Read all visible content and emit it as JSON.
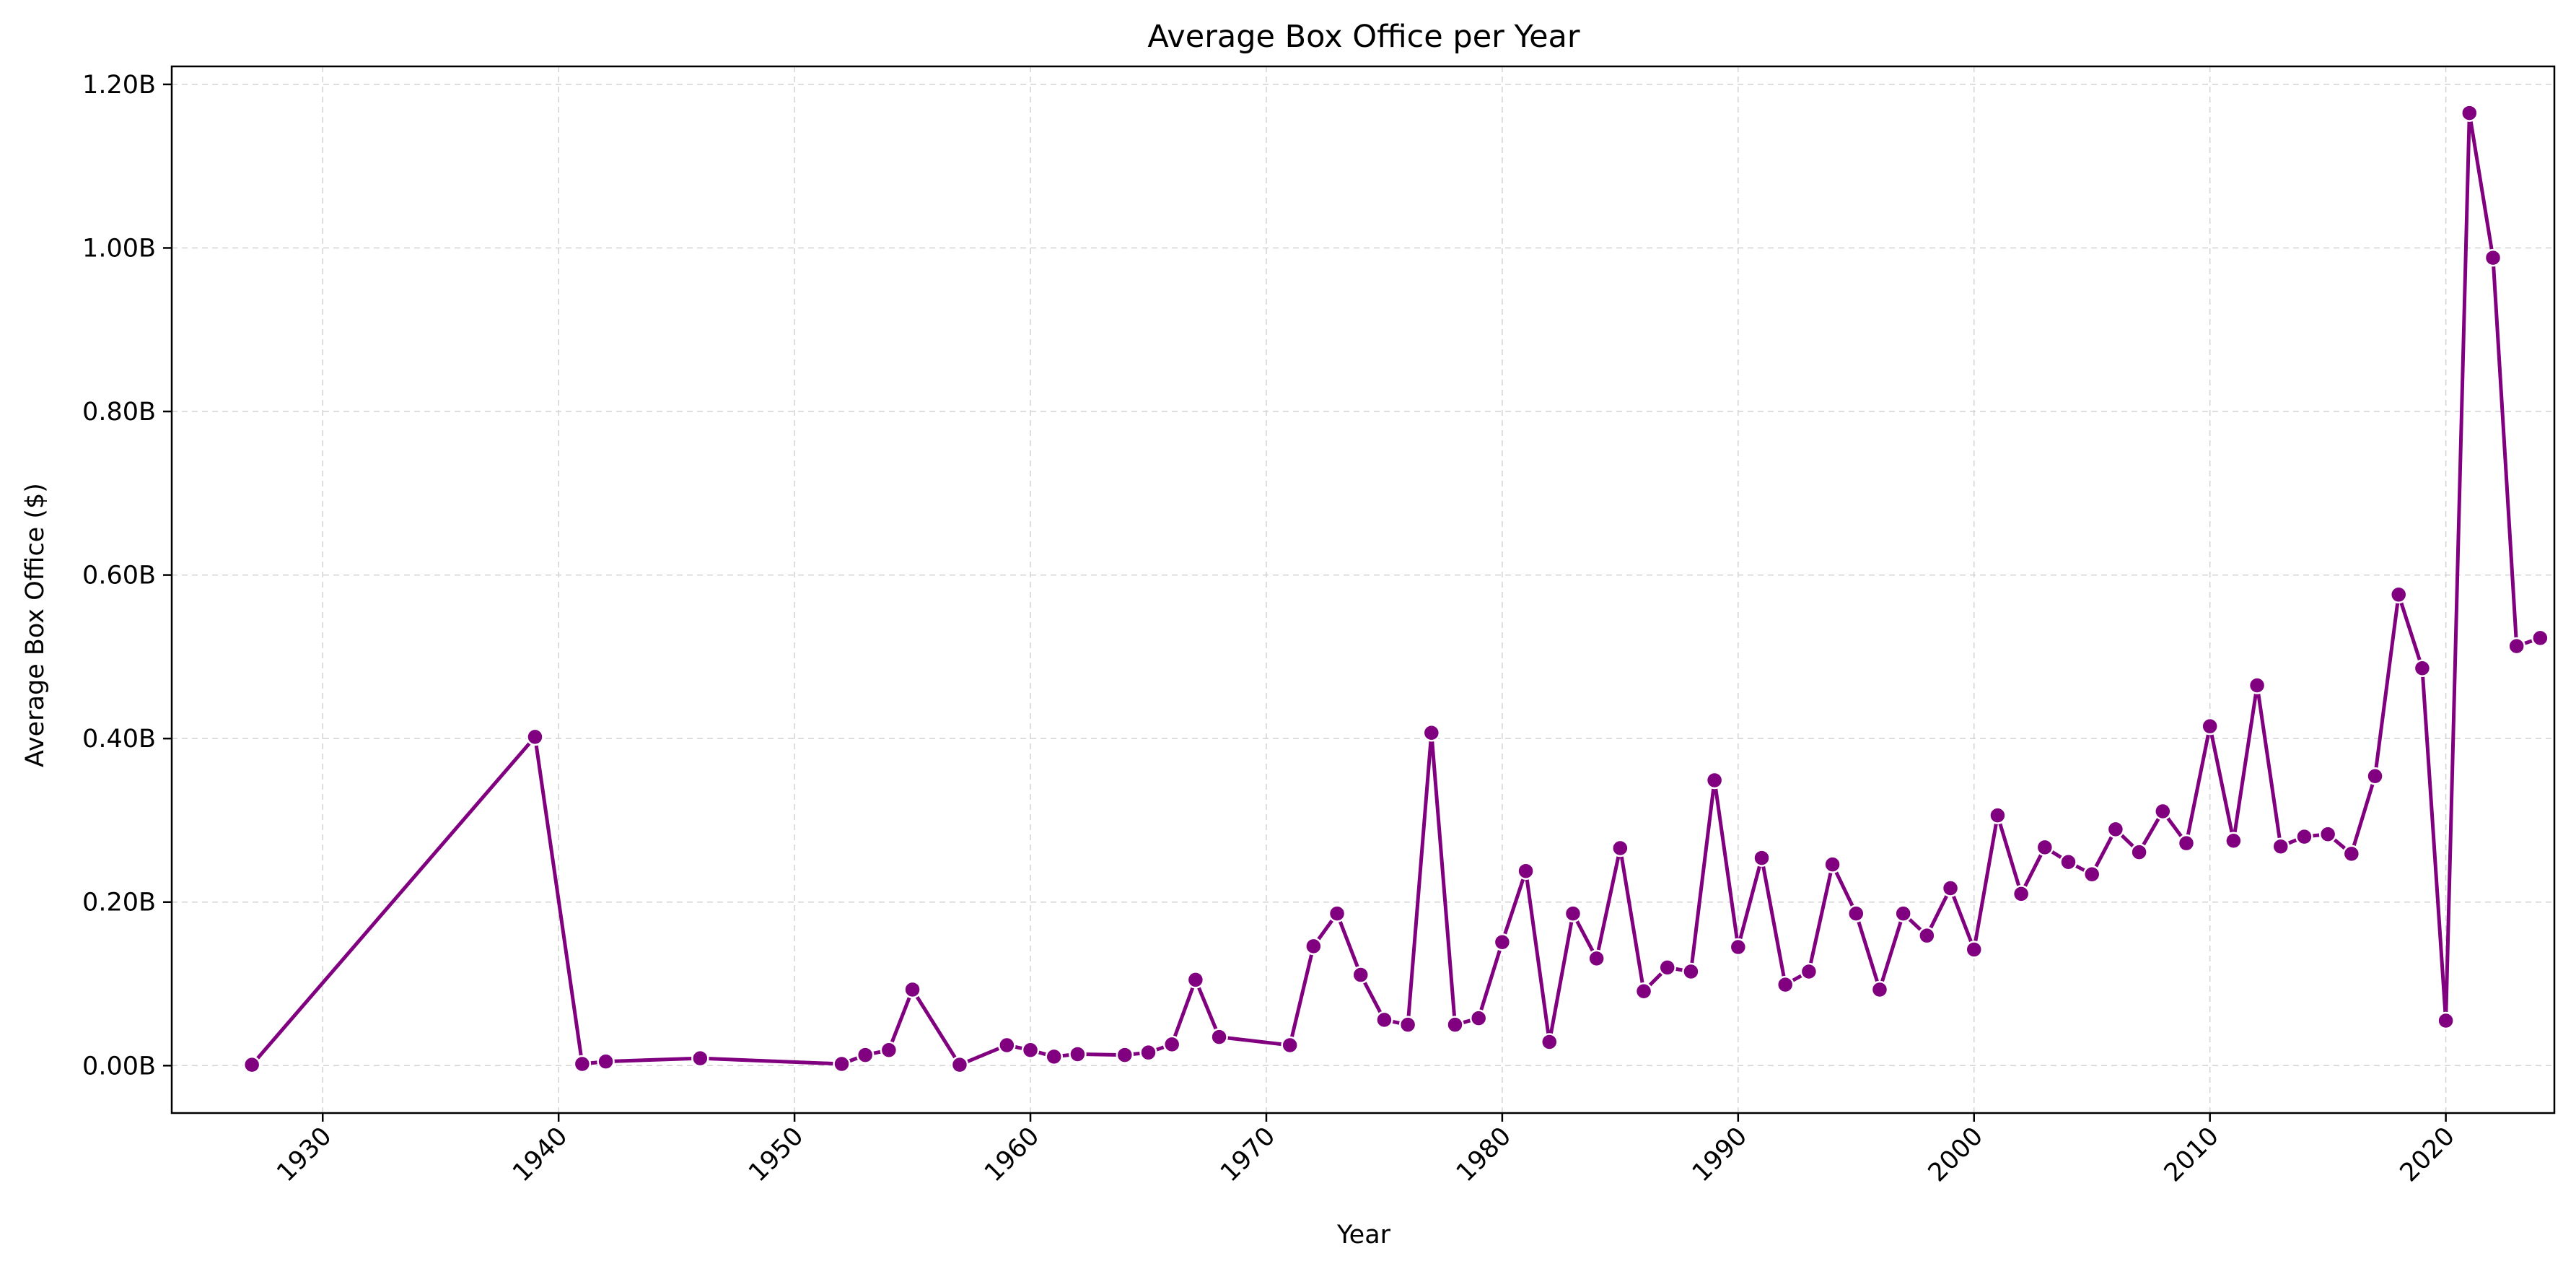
{
  "chart_data": {
    "type": "line",
    "title": "Average Box Office per Year",
    "xlabel": "Year",
    "ylabel": "Average Box Office ($)",
    "xlim": [
      1923.6,
      2024.6
    ],
    "ylim": [
      -0.058,
      1.222
    ],
    "x_ticks": [
      1930,
      1940,
      1950,
      1960,
      1970,
      1980,
      1990,
      2000,
      2010,
      2020
    ],
    "y_ticks": [
      0.0,
      0.2,
      0.4,
      0.6,
      0.8,
      1.0,
      1.2
    ],
    "y_tick_labels": [
      "0.00B",
      "0.20B",
      "0.40B",
      "0.60B",
      "0.80B",
      "1.00B",
      "1.20B"
    ],
    "grid": true,
    "line_color": "#800080",
    "marker_color": "#800080",
    "marker_edge": "#ffffff",
    "series": [
      {
        "x": [
          1927,
          1939,
          1941,
          1942,
          1946,
          1952,
          1953,
          1954,
          1955,
          1957,
          1959,
          1960,
          1961,
          1962,
          1964,
          1965,
          1966,
          1967,
          1968,
          1971,
          1972,
          1973,
          1974,
          1975,
          1976,
          1977,
          1978,
          1979,
          1980,
          1981,
          1982,
          1983,
          1984,
          1985,
          1986,
          1987,
          1988,
          1989,
          1990,
          1991,
          1992,
          1993,
          1994,
          1995,
          1996,
          1997,
          1998,
          1999,
          2000,
          2001,
          2002,
          2003,
          2004,
          2005,
          2006,
          2007,
          2008,
          2009,
          2010,
          2011,
          2012,
          2013,
          2014,
          2015,
          2016,
          2017,
          2018,
          2019,
          2020,
          2021,
          2022,
          2023,
          2024
        ],
        "y": [
          0.001,
          0.402,
          0.002,
          0.005,
          0.009,
          0.002,
          0.013,
          0.019,
          0.093,
          0.001,
          0.025,
          0.019,
          0.011,
          0.014,
          0.013,
          0.016,
          0.026,
          0.105,
          0.035,
          0.025,
          0.146,
          0.186,
          0.111,
          0.056,
          0.05,
          0.407,
          0.05,
          0.058,
          0.151,
          0.238,
          0.029,
          0.186,
          0.131,
          0.266,
          0.091,
          0.12,
          0.115,
          0.349,
          0.145,
          0.254,
          0.099,
          0.115,
          0.246,
          0.186,
          0.093,
          0.186,
          0.159,
          0.217,
          0.142,
          0.306,
          0.21,
          0.267,
          0.249,
          0.234,
          0.289,
          0.261,
          0.311,
          0.272,
          0.415,
          0.275,
          0.465,
          0.268,
          0.28,
          0.283,
          0.259,
          0.354,
          0.576,
          0.486,
          0.055,
          1.165,
          0.988,
          0.513,
          0.523
        ]
      }
    ]
  }
}
